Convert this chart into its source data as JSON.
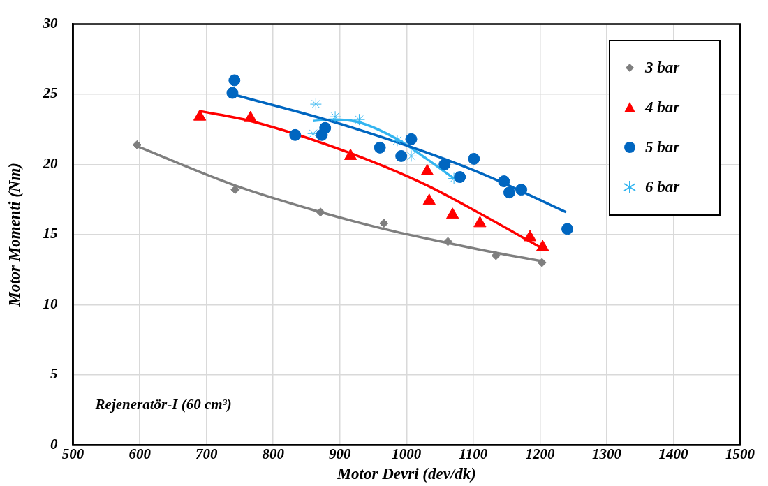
{
  "chart_data": {
    "type": "scatter",
    "xlabel": "Motor Devri (dev/dk)",
    "ylabel": "Motor Momenti (Nm)",
    "xlim": [
      500,
      1500
    ],
    "xticks": [
      500,
      600,
      700,
      800,
      900,
      1000,
      1100,
      1200,
      1300,
      1400,
      1500
    ],
    "ylim": [
      0,
      30
    ],
    "yticks": [
      0,
      5,
      10,
      15,
      20,
      25,
      30
    ],
    "grid": true,
    "legend": "top right",
    "annotations": [
      "Rejeneratör-I (60 cm³)"
    ],
    "series": [
      {
        "name": "3 bar",
        "type": "scatter",
        "marker": "diamond",
        "color": "#7f7f7f",
        "x": [
          596,
          743,
          871,
          966,
          1062,
          1134,
          1203
        ],
        "values": [
          21.4,
          18.2,
          16.6,
          15.8,
          14.5,
          13.5,
          13.0
        ]
      },
      {
        "name": "4 bar",
        "type": "scatter",
        "marker": "triangle",
        "color": "#ff0000",
        "x": [
          690,
          766,
          916,
          1031,
          1034,
          1069,
          1110,
          1185,
          1204
        ],
        "values": [
          23.4,
          23.3,
          20.6,
          19.5,
          17.4,
          16.4,
          15.8,
          14.8,
          14.1
        ]
      },
      {
        "name": "5 bar",
        "type": "scatter",
        "marker": "circle",
        "color": "#0066c0",
        "x": [
          742,
          739,
          833,
          873,
          878,
          960,
          992,
          1007,
          1057,
          1080,
          1101,
          1146,
          1154,
          1172,
          1241
        ],
        "values": [
          26.0,
          25.1,
          22.1,
          22.1,
          22.6,
          21.2,
          20.6,
          21.8,
          20.0,
          19.1,
          20.4,
          18.8,
          18.0,
          18.2,
          15.4
        ]
      },
      {
        "name": "6 bar",
        "type": "scatter",
        "marker": "cross",
        "color": "#33b5f0",
        "x": [
          864,
          860,
          893,
          929,
          986,
          1007,
          1071
        ],
        "values": [
          24.3,
          22.2,
          23.4,
          23.2,
          21.7,
          20.6,
          19.0
        ]
      },
      {
        "type": "line",
        "marker": "none",
        "color": "#7f7f7f",
        "x": [
          596,
          743,
          871,
          966,
          1062,
          1134,
          1203
        ],
        "values": [
          21.3,
          18.5,
          16.6,
          15.4,
          14.4,
          13.7,
          13.1
        ]
      },
      {
        "type": "line",
        "marker": "none",
        "color": "#ff0000",
        "x": [
          690,
          766,
          916,
          1031,
          1110,
          1204
        ],
        "values": [
          23.8,
          23.1,
          20.8,
          18.5,
          16.5,
          14.0
        ]
      },
      {
        "type": "line",
        "marker": "none",
        "color": "#0066c0",
        "x": [
          739,
          900,
          1100,
          1239
        ],
        "values": [
          25.0,
          22.9,
          19.6,
          16.6
        ]
      },
      {
        "type": "line",
        "marker": "none",
        "color": "#33b5f0",
        "x": [
          860,
          893,
          929,
          986,
          1030,
          1071
        ],
        "values": [
          23.1,
          23.2,
          23.0,
          21.8,
          20.4,
          19.0
        ]
      }
    ]
  }
}
